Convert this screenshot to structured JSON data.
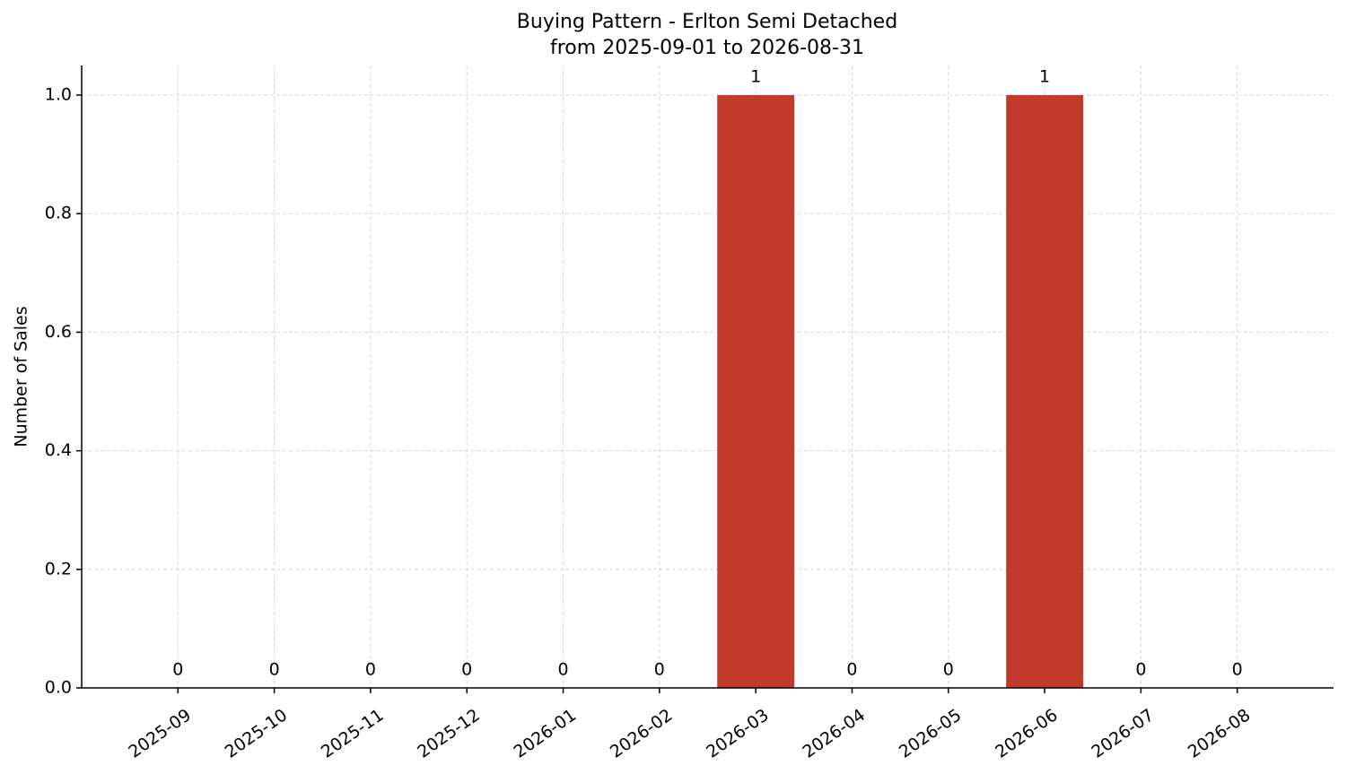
{
  "chart_data": {
    "type": "bar",
    "title": "Buying Pattern - Erlton Semi Detached",
    "subtitle": "from 2025-09-01 to 2026-08-31",
    "y_label": "Number of Sales",
    "categories": [
      "2025-09",
      "2025-10",
      "2025-11",
      "2025-12",
      "2026-01",
      "2026-02",
      "2026-03",
      "2026-04",
      "2026-05",
      "2026-06",
      "2026-07",
      "2026-08"
    ],
    "values": [
      0,
      0,
      0,
      0,
      0,
      0,
      1,
      0,
      0,
      1,
      0,
      0
    ],
    "color": "#c0392b",
    "ylim": [
      0,
      1.05
    ],
    "yticks": [
      {
        "value": 0,
        "label": "0.0"
      },
      {
        "value": 0.2,
        "label": "0.2"
      },
      {
        "value": 0.4,
        "label": "0.4"
      },
      {
        "value": 0.6,
        "label": "0.6"
      },
      {
        "value": 0.8,
        "label": "0.8"
      },
      {
        "value": 1,
        "label": "1.0"
      }
    ],
    "grid": true
  }
}
